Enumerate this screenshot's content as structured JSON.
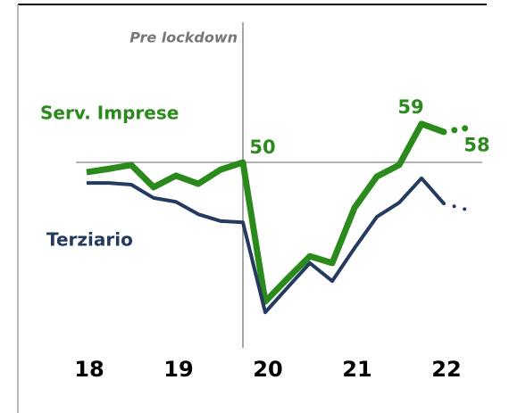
{
  "chart_data": {
    "type": "line",
    "x": [
      18,
      18.25,
      18.5,
      18.75,
      19,
      19.25,
      19.5,
      19.75,
      20,
      20.25,
      20.5,
      20.75,
      21,
      21.25,
      21.5,
      21.75,
      22,
      22.25
    ],
    "series": [
      {
        "name": "Serv. Imprese",
        "color": "#2b8a1c",
        "values": [
          47.7,
          48.5,
          49.4,
          44.2,
          46.9,
          45.0,
          48.3,
          50,
          17.5,
          22.9,
          28.1,
          26.5,
          39.4,
          46.7,
          49.4,
          59,
          57.1,
          58
        ],
        "labeled": [
          7,
          15,
          17
        ]
      },
      {
        "name": "Terziario",
        "color": "#243a5e",
        "values": [
          45.2,
          45.2,
          44.8,
          41.7,
          40.8,
          37.9,
          36.3,
          36.0,
          15.0,
          20.8,
          26.5,
          22.3,
          30.0,
          37.3,
          40.6,
          46.3,
          40.4,
          39.0
        ],
        "labeled": []
      }
    ],
    "dotted_last": true,
    "reference_line": 50,
    "annotation": {
      "text": "Pre lockdown",
      "x": 19.75
    },
    "xlim": [
      17.23,
      22.48
    ],
    "ylim": [
      6.7,
      82.7
    ],
    "xticks": [
      {
        "value": 18,
        "label": "18"
      },
      {
        "value": 19,
        "label": "19"
      },
      {
        "value": 20,
        "label": "20"
      },
      {
        "value": 21,
        "label": "21"
      },
      {
        "value": 22,
        "label": "22"
      }
    ]
  }
}
